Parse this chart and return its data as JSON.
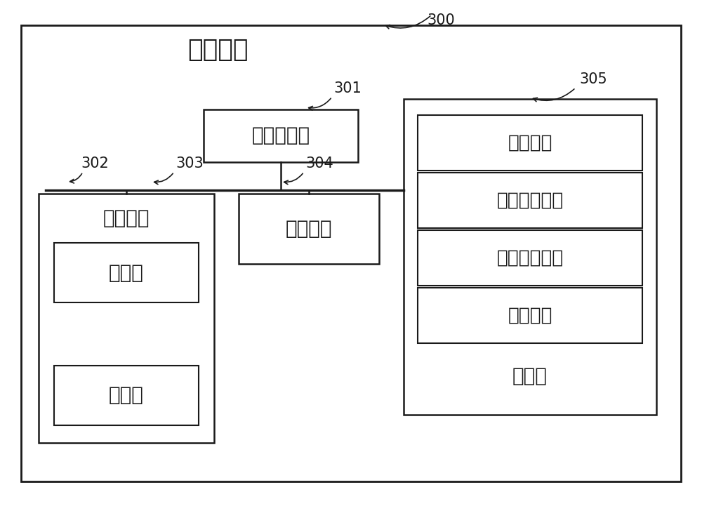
{
  "background_color": "#ffffff",
  "outer_bg": "#ffffff",
  "title_number": "300",
  "outer_label": "电子设备",
  "cpu_label": "中央处理器",
  "cpu_num": "301",
  "bus_num": "302",
  "ui_label": "用户接口",
  "ui_num": "303",
  "camera_label": "摄像头",
  "display_label": "显示屏",
  "net_label": "网络接口",
  "net_num": "304",
  "storage_label": "存储器",
  "storage_num": "305",
  "row_labels": [
    "操作系统",
    "网络通信模块",
    "用户接口模块",
    "程序指令"
  ],
  "line_color": "#1a1a1a",
  "box_face_color": "#ffffff",
  "text_color": "#1a1a1a",
  "font_size_title": 26,
  "font_size_label": 20,
  "font_size_number": 15,
  "font_size_inner": 19
}
